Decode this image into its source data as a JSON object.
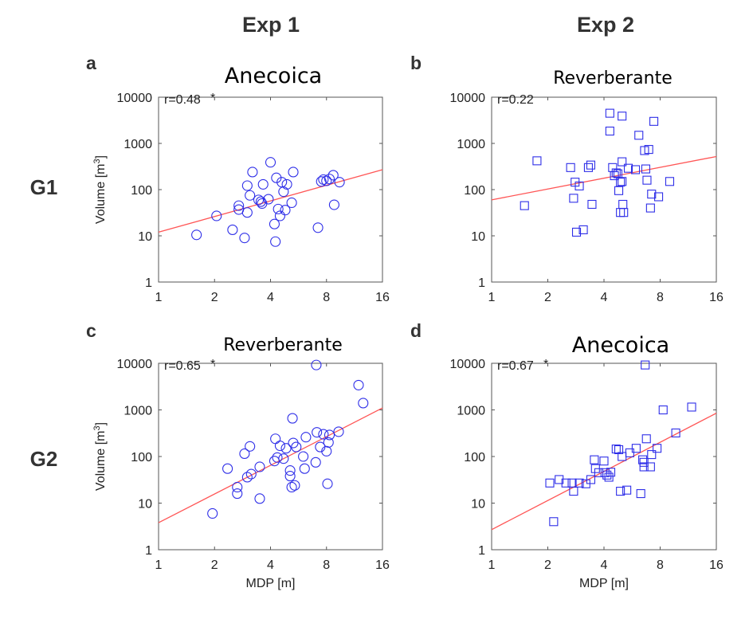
{
  "figure": {
    "columns": [
      "Exp 1",
      "Exp 2"
    ],
    "rows": [
      "G1",
      "G2"
    ]
  },
  "chart_data": [
    {
      "panel": "a",
      "title": "Anecoica",
      "correlation": "r=0.48",
      "significant": true,
      "type": "scatter",
      "marker": "circle",
      "marker_color": "#2e2ee8",
      "fit_color": "#ff5555",
      "xlabel": "",
      "ylabel": "Volume [m3]",
      "xscale": "log2",
      "yscale": "log10",
      "xlim": [
        1,
        16
      ],
      "ylim": [
        1,
        10000
      ],
      "xticks": [
        1,
        2,
        4,
        8,
        16
      ],
      "xticklabels": [
        "1",
        "2",
        "4",
        "8",
        "16"
      ],
      "yticks": [
        1,
        10,
        100,
        1000,
        10000
      ],
      "yticklabels": [
        "1",
        "10",
        "100",
        "1000",
        "10000"
      ],
      "fit_line": {
        "x": [
          1,
          16
        ],
        "y": [
          12,
          270
        ]
      },
      "points": [
        [
          1.6,
          10.5
        ],
        [
          2.05,
          27
        ],
        [
          2.5,
          13.5
        ],
        [
          2.7,
          37
        ],
        [
          2.7,
          45
        ],
        [
          2.9,
          9
        ],
        [
          3.0,
          122
        ],
        [
          3.0,
          32
        ],
        [
          3.1,
          75
        ],
        [
          3.2,
          240
        ],
        [
          3.45,
          60
        ],
        [
          3.55,
          55
        ],
        [
          3.6,
          50
        ],
        [
          3.65,
          130
        ],
        [
          3.9,
          62
        ],
        [
          4.0,
          390
        ],
        [
          4.2,
          18
        ],
        [
          4.25,
          7.5
        ],
        [
          4.3,
          180
        ],
        [
          4.4,
          38
        ],
        [
          4.5,
          27
        ],
        [
          4.6,
          145
        ],
        [
          4.7,
          90
        ],
        [
          4.8,
          36
        ],
        [
          4.9,
          130
        ],
        [
          5.2,
          52
        ],
        [
          5.3,
          240
        ],
        [
          7.2,
          15
        ],
        [
          7.5,
          150
        ],
        [
          7.7,
          165
        ],
        [
          8.0,
          155
        ],
        [
          8.3,
          170
        ],
        [
          8.7,
          205
        ],
        [
          8.8,
          47
        ],
        [
          9.4,
          145
        ]
      ]
    },
    {
      "panel": "b",
      "title": "Reverberante",
      "correlation": "r=0.22",
      "significant": false,
      "type": "scatter",
      "marker": "square",
      "marker_color": "#2e2ee8",
      "fit_color": "#ff5555",
      "xlabel": "",
      "ylabel": "",
      "xscale": "log2",
      "yscale": "log10",
      "xlim": [
        1,
        16
      ],
      "ylim": [
        1,
        10000
      ],
      "xticks": [
        1,
        2,
        4,
        8,
        16
      ],
      "xticklabels": [
        "1",
        "2",
        "4",
        "8",
        "16"
      ],
      "yticks": [
        1,
        10,
        100,
        1000,
        10000
      ],
      "yticklabels": [
        "1",
        "10",
        "100",
        "1000",
        "10000"
      ],
      "fit_line": {
        "x": [
          1,
          16
        ],
        "y": [
          60,
          520
        ]
      },
      "points": [
        [
          1.5,
          45
        ],
        [
          1.75,
          420
        ],
        [
          2.65,
          300
        ],
        [
          2.75,
          65
        ],
        [
          2.8,
          145
        ],
        [
          2.85,
          12
        ],
        [
          2.95,
          120
        ],
        [
          3.1,
          13.5
        ],
        [
          3.3,
          300
        ],
        [
          3.4,
          340
        ],
        [
          3.45,
          48
        ],
        [
          4.3,
          4500
        ],
        [
          4.3,
          1850
        ],
        [
          4.45,
          300
        ],
        [
          4.55,
          200
        ],
        [
          4.65,
          230
        ],
        [
          4.75,
          220
        ],
        [
          4.8,
          95
        ],
        [
          4.9,
          32
        ],
        [
          4.9,
          145
        ],
        [
          5.0,
          3900
        ],
        [
          5.0,
          400
        ],
        [
          5.0,
          150
        ],
        [
          5.05,
          48
        ],
        [
          5.1,
          32
        ],
        [
          5.4,
          290
        ],
        [
          5.9,
          270
        ],
        [
          6.15,
          1500
        ],
        [
          6.6,
          700
        ],
        [
          6.7,
          280
        ],
        [
          6.8,
          160
        ],
        [
          6.95,
          740
        ],
        [
          7.1,
          40
        ],
        [
          7.2,
          80
        ],
        [
          7.4,
          3000
        ],
        [
          7.85,
          70
        ],
        [
          9.0,
          150
        ]
      ]
    },
    {
      "panel": "c",
      "title": "Reverberante",
      "correlation": "r=0.65",
      "significant": true,
      "type": "scatter",
      "marker": "circle",
      "marker_color": "#2e2ee8",
      "fit_color": "#ff5555",
      "xlabel": "MDP [m]",
      "ylabel": "Volume [m3]",
      "xscale": "log2",
      "yscale": "log10",
      "xlim": [
        1,
        16
      ],
      "ylim": [
        1,
        10000
      ],
      "xticks": [
        1,
        2,
        4,
        8,
        16
      ],
      "xticklabels": [
        "1",
        "2",
        "4",
        "8",
        "16"
      ],
      "yticks": [
        1,
        10,
        100,
        1000,
        10000
      ],
      "yticklabels": [
        "1",
        "10",
        "100",
        "1000",
        "10000"
      ],
      "fit_line": {
        "x": [
          1,
          16
        ],
        "y": [
          3.8,
          1100
        ]
      },
      "points": [
        [
          1.95,
          6
        ],
        [
          2.35,
          55
        ],
        [
          2.65,
          22
        ],
        [
          2.65,
          16
        ],
        [
          2.9,
          115
        ],
        [
          3.0,
          36
        ],
        [
          3.1,
          165
        ],
        [
          3.15,
          42
        ],
        [
          3.5,
          60
        ],
        [
          3.5,
          12.5
        ],
        [
          4.2,
          80
        ],
        [
          4.25,
          240
        ],
        [
          4.35,
          95
        ],
        [
          4.5,
          170
        ],
        [
          4.7,
          90
        ],
        [
          4.85,
          150
        ],
        [
          5.1,
          50
        ],
        [
          5.1,
          38
        ],
        [
          5.2,
          22
        ],
        [
          5.25,
          660
        ],
        [
          5.3,
          195
        ],
        [
          5.4,
          24
        ],
        [
          5.5,
          160
        ],
        [
          6.0,
          100
        ],
        [
          6.1,
          55
        ],
        [
          6.2,
          260
        ],
        [
          7.0,
          75
        ],
        [
          7.05,
          9200
        ],
        [
          7.1,
          330
        ],
        [
          7.4,
          160
        ],
        [
          7.7,
          300
        ],
        [
          8.0,
          130
        ],
        [
          8.1,
          26
        ],
        [
          8.2,
          200
        ],
        [
          8.3,
          290
        ],
        [
          9.3,
          340
        ],
        [
          11.9,
          3400
        ],
        [
          12.6,
          1400
        ]
      ]
    },
    {
      "panel": "d",
      "title": "Anecoica",
      "correlation": "r=0.67",
      "significant": true,
      "type": "scatter",
      "marker": "square",
      "marker_color": "#2e2ee8",
      "fit_color": "#ff5555",
      "xlabel": "MDP [m]",
      "ylabel": "",
      "xscale": "log2",
      "yscale": "log10",
      "xlim": [
        1,
        16
      ],
      "ylim": [
        1,
        10000
      ],
      "xticks": [
        1,
        2,
        4,
        8,
        16
      ],
      "xticklabels": [
        "1",
        "2",
        "4",
        "8",
        "16"
      ],
      "yticks": [
        1,
        10,
        100,
        1000,
        10000
      ],
      "yticklabels": [
        "1",
        "10",
        "100",
        "1000",
        "10000"
      ],
      "fit_line": {
        "x": [
          1,
          16
        ],
        "y": [
          2.7,
          850
        ]
      },
      "points": [
        [
          2.05,
          27
        ],
        [
          2.15,
          4
        ],
        [
          2.3,
          32
        ],
        [
          2.5,
          27
        ],
        [
          2.7,
          27
        ],
        [
          2.75,
          18
        ],
        [
          2.95,
          27
        ],
        [
          3.2,
          26
        ],
        [
          3.4,
          32
        ],
        [
          3.55,
          85
        ],
        [
          3.6,
          55
        ],
        [
          3.75,
          45
        ],
        [
          4.0,
          80
        ],
        [
          4.05,
          45
        ],
        [
          4.15,
          40
        ],
        [
          4.25,
          36
        ],
        [
          4.35,
          46
        ],
        [
          4.65,
          145
        ],
        [
          4.8,
          140
        ],
        [
          4.9,
          18
        ],
        [
          5.0,
          100
        ],
        [
          5.3,
          19
        ],
        [
          5.5,
          120
        ],
        [
          5.95,
          150
        ],
        [
          6.3,
          16
        ],
        [
          6.45,
          85
        ],
        [
          6.55,
          60
        ],
        [
          6.55,
          75
        ],
        [
          6.65,
          9200
        ],
        [
          6.75,
          240
        ],
        [
          7.1,
          60
        ],
        [
          7.2,
          110
        ],
        [
          7.7,
          150
        ],
        [
          8.3,
          1000
        ],
        [
          9.7,
          320
        ],
        [
          11.8,
          1150
        ]
      ]
    }
  ]
}
